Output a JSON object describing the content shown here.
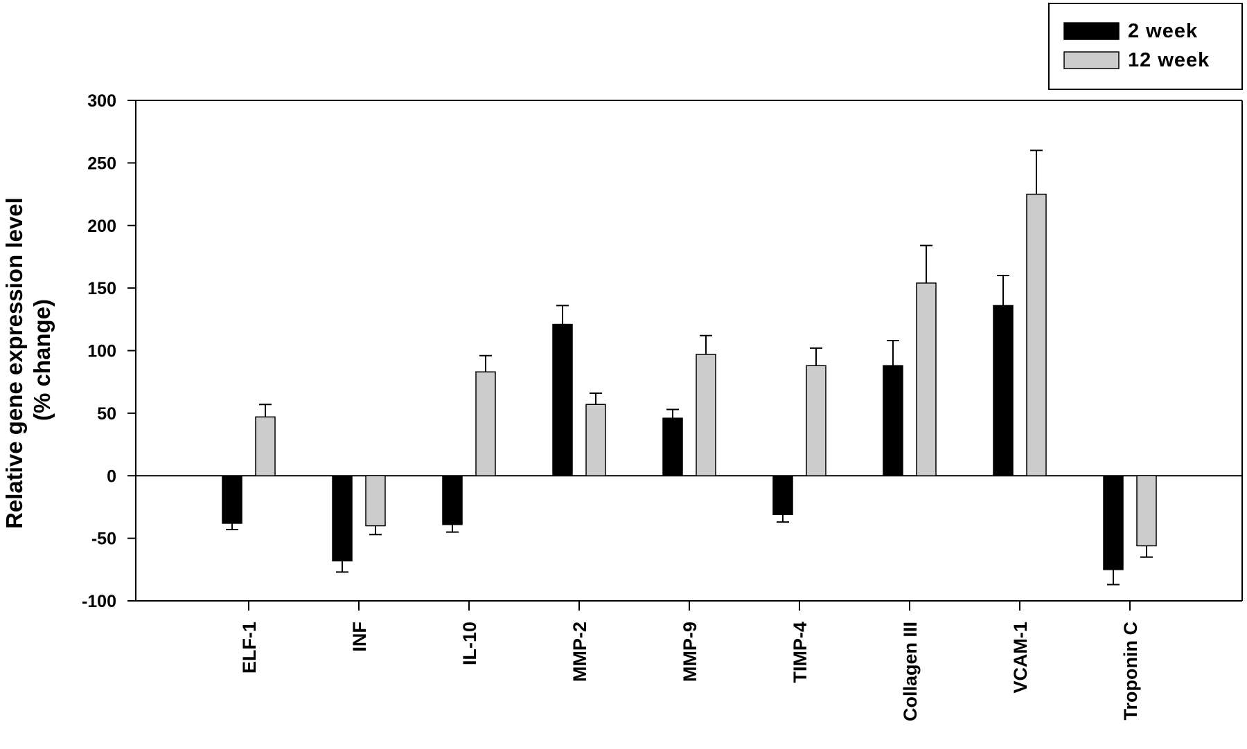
{
  "chart_data": {
    "type": "bar",
    "title": "",
    "xlabel": "",
    "ylabel_lines": [
      "Relative gene expression level",
      "(% change)"
    ],
    "ylim": [
      -100,
      300
    ],
    "yticks": [
      300,
      250,
      200,
      150,
      100,
      50,
      0,
      -50,
      -100
    ],
    "ytick_labels": [
      "300",
      "250",
      "200",
      "150",
      "100",
      "50",
      "0",
      "-50",
      "-100"
    ],
    "categories": [
      "ELF-1",
      "INF",
      "IL-10",
      "MMP-2",
      "MMP-9",
      "TIMP-4",
      "Collagen III",
      "VCAM-1",
      "Troponin C"
    ],
    "series": [
      {
        "name": "2 week",
        "color": "#000000",
        "values": [
          -38,
          -68,
          -39,
          121,
          46,
          -31,
          88,
          136,
          -75
        ],
        "errors": [
          5,
          9,
          6,
          15,
          7,
          6,
          20,
          24,
          12
        ]
      },
      {
        "name": "12 week",
        "color": "#cccccc",
        "values": [
          47,
          -40,
          83,
          57,
          97,
          88,
          154,
          225,
          -56
        ],
        "errors": [
          10,
          7,
          13,
          9,
          15,
          14,
          30,
          35,
          9
        ]
      }
    ],
    "legend_position": "top-right",
    "grid": false
  }
}
